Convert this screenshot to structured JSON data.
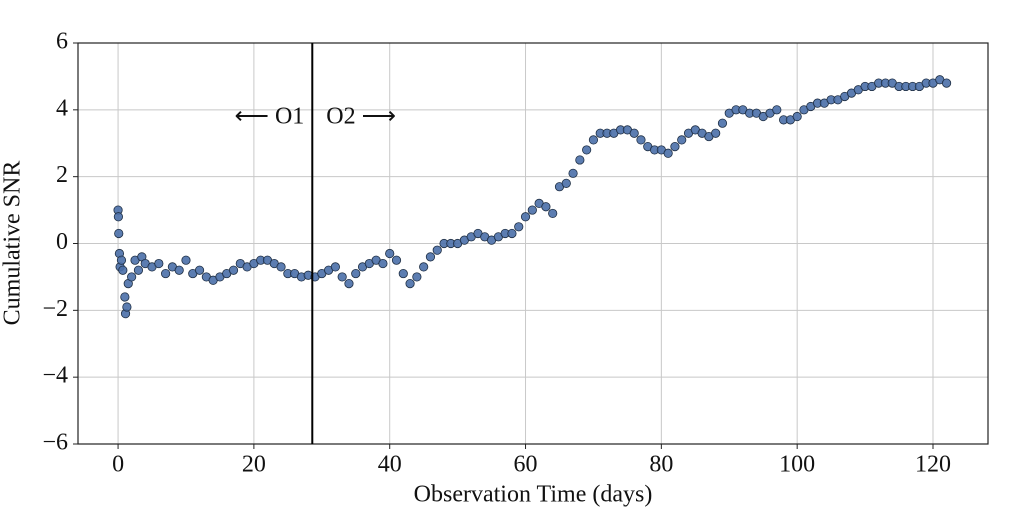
{
  "chart_data": {
    "type": "scatter",
    "xlabel": "Observation Time (days)",
    "ylabel": "Cumulative SNR",
    "annotations": [
      "⟵ O1",
      "O2 ⟶"
    ],
    "vline": 28.6,
    "color": "#4a6fa8",
    "edgecolor": "#1f2f44",
    "x": [
      0,
      0.05,
      0.1,
      0.2,
      0.3,
      0.5,
      0.7,
      1,
      1.1,
      1.3,
      1.5,
      2,
      2.5,
      3,
      3.5,
      4,
      5,
      6,
      7,
      8,
      9,
      10,
      11,
      12,
      13,
      14,
      15,
      16,
      17,
      18,
      19,
      20,
      21,
      22,
      23,
      24,
      25,
      26,
      27,
      28,
      29,
      30,
      31,
      32,
      33,
      34,
      35,
      36,
      37,
      38,
      39,
      40,
      41,
      42,
      43,
      44,
      45,
      46,
      47,
      48,
      49,
      50,
      51,
      52,
      53,
      54,
      55,
      56,
      57,
      58,
      59,
      60,
      61,
      62,
      63,
      64,
      65,
      66,
      67,
      68,
      69,
      70,
      71,
      72,
      73,
      74,
      75,
      76,
      77,
      78,
      79,
      80,
      81,
      82,
      83,
      84,
      85,
      86,
      87,
      88,
      89,
      90,
      91,
      92,
      93,
      94,
      95,
      96,
      97,
      98,
      99,
      100,
      101,
      102,
      103,
      104,
      105,
      106,
      107,
      108,
      109,
      110,
      111,
      112,
      113,
      114,
      115,
      116,
      117,
      118,
      119,
      120,
      121,
      122
    ],
    "values": [
      1.0,
      0.8,
      0.3,
      -0.3,
      -0.7,
      -0.5,
      -0.8,
      -1.6,
      -2.1,
      -1.9,
      -1.2,
      -1.0,
      -0.5,
      -0.8,
      -0.4,
      -0.6,
      -0.7,
      -0.6,
      -0.9,
      -0.7,
      -0.8,
      -0.5,
      -0.9,
      -0.8,
      -1.0,
      -1.1,
      -1.0,
      -0.9,
      -0.8,
      -0.6,
      -0.7,
      -0.6,
      -0.5,
      -0.5,
      -0.6,
      -0.7,
      -0.9,
      -0.9,
      -1.0,
      -0.95,
      -1.0,
      -0.9,
      -0.8,
      -0.7,
      -1.0,
      -1.2,
      -0.9,
      -0.7,
      -0.6,
      -0.5,
      -0.6,
      -0.3,
      -0.5,
      -0.9,
      -1.2,
      -1.0,
      -0.7,
      -0.4,
      -0.2,
      0.0,
      0.0,
      0.0,
      0.1,
      0.2,
      0.3,
      0.2,
      0.1,
      0.2,
      0.3,
      0.3,
      0.5,
      0.8,
      1.0,
      1.2,
      1.1,
      0.9,
      1.7,
      1.8,
      2.1,
      2.5,
      2.8,
      3.1,
      3.3,
      3.3,
      3.3,
      3.4,
      3.4,
      3.3,
      3.1,
      2.9,
      2.8,
      2.8,
      2.7,
      2.9,
      3.1,
      3.3,
      3.4,
      3.3,
      3.2,
      3.3,
      3.6,
      3.9,
      4.0,
      4.0,
      3.9,
      3.9,
      3.8,
      3.9,
      4.0,
      3.7,
      3.7,
      3.8,
      4.0,
      4.1,
      4.2,
      4.2,
      4.3,
      4.3,
      4.4,
      4.5,
      4.6,
      4.7,
      4.7,
      4.8,
      4.8,
      4.8,
      4.7,
      4.7,
      4.7,
      4.7,
      4.8,
      4.8,
      4.9,
      4.8
    ],
    "xlim": [
      -5.9,
      128.1
    ],
    "ylim": [
      -6,
      6
    ],
    "xticks": [
      0,
      20,
      40,
      60,
      80,
      100,
      120
    ],
    "yticks": [
      {
        "value": -6,
        "label": "−6"
      },
      {
        "value": -4,
        "label": "−4"
      },
      {
        "value": -2,
        "label": "−2"
      },
      0,
      2,
      4,
      6
    ],
    "grid": true
  }
}
